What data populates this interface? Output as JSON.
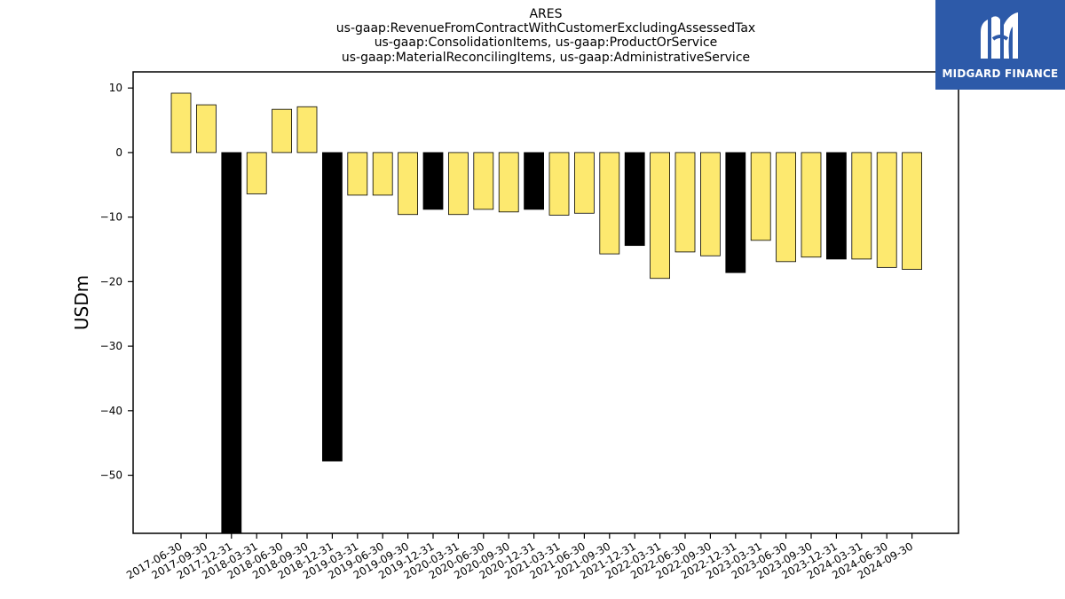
{
  "chart_data": {
    "type": "bar",
    "title_lines": [
      "ARES",
      "us-gaap:RevenueFromContractWithCustomerExcludingAssessedTax",
      "us-gaap:ConsolidationItems, us-gaap:ProductOrService",
      "us-gaap:MaterialReconcilingItems, us-gaap:AdministrativeService"
    ],
    "ylabel": "USDm",
    "ylim": [
      -59,
      12.5
    ],
    "yticks": [
      10,
      0,
      -10,
      -20,
      -30,
      -40,
      -50
    ],
    "ytick_labels": [
      "10",
      "0",
      "−10",
      "−20",
      "−30",
      "−40",
      "−50"
    ],
    "categories": [
      "2017-06-30",
      "2017-09-30",
      "2017-12-31",
      "2018-03-31",
      "2018-06-30",
      "2018-09-30",
      "2018-12-31",
      "2019-03-31",
      "2019-06-30",
      "2019-09-30",
      "2019-12-31",
      "2020-03-31",
      "2020-06-30",
      "2020-09-30",
      "2020-12-31",
      "2021-03-31",
      "2021-06-30",
      "2021-09-30",
      "2021-12-31",
      "2022-03-31",
      "2022-06-30",
      "2022-09-30",
      "2022-12-31",
      "2023-03-31",
      "2023-06-30",
      "2023-09-30",
      "2023-12-31",
      "2024-03-31",
      "2024-06-30",
      "2024-09-30"
    ],
    "values": [
      9.2,
      7.4,
      -59.0,
      -6.4,
      6.7,
      7.1,
      -47.8,
      -6.6,
      -6.6,
      -9.6,
      -8.8,
      -9.6,
      -8.8,
      -9.2,
      -8.8,
      -9.7,
      -9.4,
      -15.7,
      -14.4,
      -19.5,
      -15.4,
      -16.0,
      -18.6,
      -13.6,
      -16.9,
      -16.2,
      -16.5,
      -16.5,
      -17.8,
      -18.1
    ],
    "bar_colors": [
      "#fde96f",
      "#fde96f",
      "#000000",
      "#fde96f",
      "#fde96f",
      "#fde96f",
      "#000000",
      "#fde96f",
      "#fde96f",
      "#fde96f",
      "#000000",
      "#fde96f",
      "#fde96f",
      "#fde96f",
      "#000000",
      "#fde96f",
      "#fde96f",
      "#fde96f",
      "#000000",
      "#fde96f",
      "#fde96f",
      "#fde96f",
      "#000000",
      "#fde96f",
      "#fde96f",
      "#fde96f",
      "#000000",
      "#fde96f",
      "#fde96f",
      "#fde96f"
    ],
    "grid": false
  },
  "logo": {
    "text": "MIDGARD FINANCE",
    "icon": "midgard-m-logo-icon",
    "bg_color": "#2d5aa9"
  }
}
